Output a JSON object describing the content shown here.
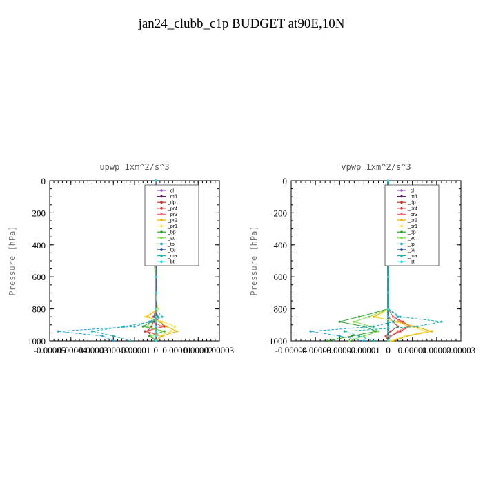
{
  "figure": {
    "title": "jan24_clubb_c1p  BUDGET at90E,10N"
  },
  "colors": {
    "_cl": "#9b59d0",
    "_mfl": "#6a1a6a",
    "_dp1": "#c0392b",
    "_pr4": "#d62728",
    "_pr3": "#ff6a6a",
    "_pr2": "#e8b400",
    "_pr1": "#f5e04a",
    "_bp": "#2ca02c",
    "_ac": "#7ddc4a",
    "_tp": "#1f9fd8",
    "_ta": "#1c3f95",
    "_ma": "#20b2aa",
    "_bt": "#1ee5e5"
  },
  "chart_data": [
    {
      "type": "line",
      "title": "upwp   1xm^2/s^3",
      "ylabel": "Pressure [hPa]",
      "xlabel": "",
      "ylim": [
        1000,
        0
      ],
      "xlim": [
        -5e-05,
        3e-05
      ],
      "yticks": [
        "0",
        "200",
        "400",
        "600",
        "800",
        "1000"
      ],
      "xticks": [
        "-0.00005",
        "-0.00004",
        "-0.00003",
        "-0.00002",
        "-0.00001",
        "0",
        "0.00001",
        "0.00002",
        "0.00003"
      ],
      "grid": false,
      "legend": "upper-right",
      "y": [
        0,
        50,
        100,
        150,
        200,
        300,
        400,
        500,
        600,
        700,
        800,
        850,
        880,
        910,
        940,
        970,
        1000
      ],
      "series": [
        {
          "name": "_cl",
          "values": [
            0,
            0,
            0,
            0,
            0,
            0,
            0,
            0,
            0,
            0,
            0,
            0,
            0,
            0,
            0,
            0,
            0
          ]
        },
        {
          "name": "_mfl",
          "values": [
            0,
            0,
            0,
            0,
            0,
            0,
            0,
            0,
            0,
            0,
            0,
            0,
            0,
            0,
            0,
            0,
            0
          ]
        },
        {
          "name": "_dp1",
          "values": [
            0,
            0,
            0,
            0,
            0,
            0,
            0,
            0,
            0,
            0,
            0,
            0,
            -1e-06,
            -2e-06,
            -4e-06,
            -2e-06,
            0
          ]
        },
        {
          "name": "_pr4",
          "values": [
            0,
            0,
            0,
            0,
            0,
            0,
            0,
            0,
            0,
            0,
            0,
            -1e-06,
            2e-06,
            4e-06,
            -5e-06,
            3e-06,
            0
          ]
        },
        {
          "name": "_pr3",
          "values": [
            0,
            0,
            0,
            0,
            0,
            0,
            0,
            0,
            0,
            0,
            0,
            1e-06,
            -2e-06,
            3e-06,
            -4e-06,
            2e-06,
            0
          ]
        },
        {
          "name": "_pr2",
          "values": [
            0,
            0,
            0,
            -2e-06,
            -1e-06,
            0,
            0,
            0,
            0,
            0,
            1e-06,
            -4e-06,
            2e-06,
            5e-06,
            1e-05,
            3e-06,
            0
          ]
        },
        {
          "name": "_pr1",
          "values": [
            0,
            0,
            -1e-06,
            -3e-06,
            -2e-06,
            -1e-06,
            0,
            0,
            0,
            0,
            1e-06,
            -5e-06,
            3e-06,
            9e-06,
            7e-06,
            2e-06,
            0
          ]
        },
        {
          "name": "_bp",
          "values": [
            0,
            0,
            0,
            0,
            0,
            -1e-06,
            -2e-06,
            -1e-06,
            0,
            0,
            0,
            1e-06,
            -2e-06,
            -6e-06,
            4e-06,
            -3e-06,
            0
          ]
        },
        {
          "name": "_ac",
          "values": [
            0,
            0,
            0,
            0,
            0,
            0,
            -1e-06,
            -1e-06,
            0,
            0,
            0,
            1e-06,
            -2e-06,
            -4e-06,
            3e-06,
            -2e-06,
            0
          ]
        },
        {
          "name": "_tp",
          "values": [
            0,
            0,
            1e-06,
            2e-06,
            0,
            0,
            0,
            0,
            0,
            0,
            0,
            1e-06,
            -3e-06,
            -1e-05,
            -4.6e-05,
            -2.5e-05,
            -2e-05
          ]
        },
        {
          "name": "_ta",
          "values": [
            0,
            0,
            0,
            0,
            0,
            0,
            0,
            0,
            0,
            0,
            0,
            0,
            0,
            0,
            0,
            0,
            0
          ]
        },
        {
          "name": "_ma",
          "values": [
            0,
            0,
            0,
            0,
            0,
            0,
            0,
            0,
            0,
            0,
            0,
            3e-06,
            -2e-06,
            -1.5e-05,
            -3e-05,
            -2e-05,
            -1.2e-05
          ]
        },
        {
          "name": "_bt",
          "values": [
            0,
            0,
            0,
            0,
            0,
            0,
            0,
            0,
            0,
            0,
            0,
            0,
            0,
            0,
            0,
            0,
            0
          ]
        }
      ]
    },
    {
      "type": "line",
      "title": "vpwp   1xm^2/s^3",
      "ylabel": "Pressure [hPa]",
      "xlabel": "",
      "ylim": [
        1000,
        0
      ],
      "xlim": [
        -4e-05,
        3e-05
      ],
      "yticks": [
        "0",
        "200",
        "400",
        "600",
        "800",
        "1000"
      ],
      "xticks": [
        "-0.00004",
        "-0.00003",
        "-0.00002",
        "-0.00001",
        "0",
        "0.00001",
        "0.00002",
        "0.00003"
      ],
      "grid": false,
      "legend": "upper-right",
      "y": [
        0,
        50,
        100,
        150,
        200,
        300,
        400,
        500,
        600,
        700,
        800,
        850,
        880,
        910,
        940,
        970,
        1000
      ],
      "series": [
        {
          "name": "_cl",
          "values": [
            0,
            0,
            0,
            0,
            0,
            0,
            0,
            0,
            0,
            0,
            0,
            0,
            0,
            0,
            0,
            0,
            0
          ]
        },
        {
          "name": "_mfl",
          "values": [
            0,
            0,
            0,
            0,
            0,
            0,
            0,
            0,
            0,
            0,
            0,
            0,
            0,
            0,
            0,
            0,
            0
          ]
        },
        {
          "name": "_dp1",
          "values": [
            0,
            0,
            0,
            0,
            0,
            0,
            0,
            0,
            0,
            0,
            0,
            0,
            2e-06,
            4e-06,
            1e-06,
            -1e-06,
            0
          ]
        },
        {
          "name": "_pr4",
          "values": [
            0,
            0,
            0,
            0,
            0,
            0,
            0,
            0,
            0,
            0,
            0,
            2e-06,
            6e-06,
            9e-06,
            5e-06,
            1e-06,
            0
          ]
        },
        {
          "name": "_pr3",
          "values": [
            0,
            0,
            0,
            0,
            0,
            0,
            0,
            0,
            0,
            0,
            0,
            2e-06,
            5e-06,
            8e-06,
            4e-06,
            1e-06,
            0
          ]
        },
        {
          "name": "_pr2",
          "values": [
            0,
            0,
            0,
            0,
            0,
            0,
            0,
            0,
            0,
            0,
            0,
            -6e-06,
            4e-06,
            1.1e-05,
            1.8e-05,
            8e-06,
            2e-06
          ]
        },
        {
          "name": "_pr1",
          "values": [
            0,
            0,
            0,
            0,
            0,
            0,
            0,
            0,
            0,
            0,
            0,
            -5e-06,
            3e-06,
            9e-06,
            1.6e-05,
            7e-06,
            1e-06
          ]
        },
        {
          "name": "_bp",
          "values": [
            0,
            0,
            0,
            0,
            0,
            0,
            0,
            0,
            0,
            0,
            0,
            -1.2e-05,
            -2e-05,
            -1e-05,
            -5e-06,
            -1.5e-05,
            -2.5e-05
          ]
        },
        {
          "name": "_ac",
          "values": [
            0,
            0,
            0,
            0,
            0,
            0,
            0,
            0,
            0,
            0,
            0,
            -8e-06,
            -1.4e-05,
            -7e-06,
            -4e-06,
            -1e-05,
            -1.6e-05
          ]
        },
        {
          "name": "_tp",
          "values": [
            0,
            0,
            0,
            0,
            0,
            0,
            0,
            0,
            0,
            0,
            0,
            4e-06,
            2e-06,
            -6e-06,
            -3.2e-05,
            -2e-05,
            -1e-05
          ]
        },
        {
          "name": "_ta",
          "values": [
            0,
            0,
            0,
            0,
            0,
            0,
            0,
            0,
            0,
            0,
            0,
            0,
            0,
            0,
            0,
            0,
            0
          ]
        },
        {
          "name": "_ma",
          "values": [
            0,
            0,
            0,
            0,
            0,
            0,
            0,
            0,
            0,
            0,
            0,
            5e-06,
            2.2e-05,
            1.2e-05,
            -1.8e-05,
            -1.2e-05,
            -6e-06
          ]
        },
        {
          "name": "_bt",
          "values": [
            0,
            0,
            0,
            0,
            0,
            0,
            0,
            0,
            0,
            0,
            0,
            0,
            0,
            0,
            0,
            0,
            0
          ]
        }
      ]
    }
  ]
}
